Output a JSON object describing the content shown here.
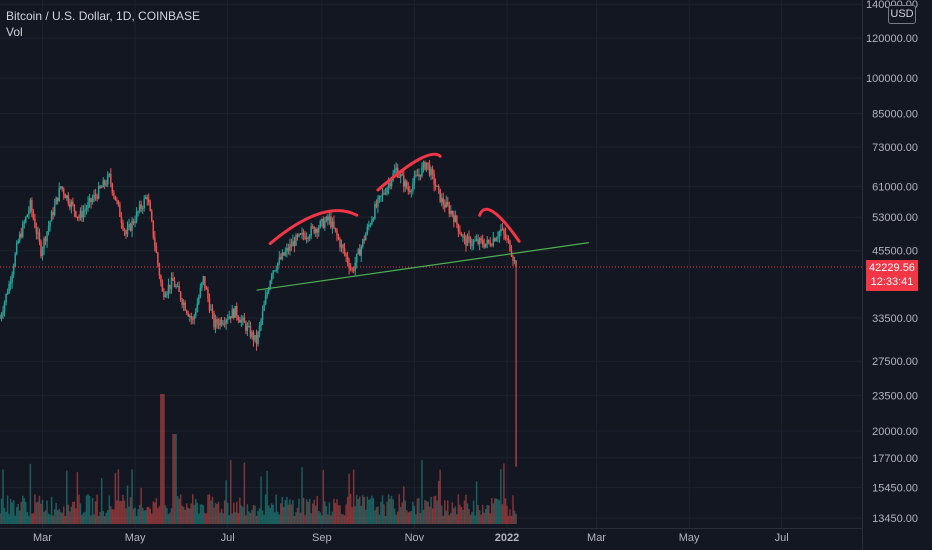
{
  "header": {
    "title": "Bitcoin / U.S. Dollar, 1D, COINBASE",
    "indicator": "Vol"
  },
  "currency_label": "USD",
  "last_price": {
    "value": "42229.56",
    "countdown": "12:33:41"
  },
  "colors": {
    "background": "#131722",
    "up": "#26a69a",
    "down": "#ef5350",
    "grid": "#1e222d",
    "trendline": "#4caf50",
    "arc": "#f23645",
    "price_line": "#f23645",
    "axis_text": "#b2b5be"
  },
  "chart_data": {
    "type": "candlestick",
    "title": "Bitcoin / U.S. Dollar, 1D, COINBASE",
    "y_scale": "log",
    "ylim": [
      13000,
      140000
    ],
    "y_ticks": [
      "140000.00",
      "120000.00",
      "100000.00",
      "85000.00",
      "73000.00",
      "61000.00",
      "53000.00",
      "45500.00",
      "33500.00",
      "27500.00",
      "23500.00",
      "20000.00",
      "17700.00",
      "15450.00",
      "13450.00"
    ],
    "x_ticks": [
      "Mar",
      "May",
      "Jul",
      "Sep",
      "Nov",
      "2022",
      "Mar",
      "May",
      "Jul"
    ],
    "x_range": [
      "2021-02-01",
      "2022-08-15"
    ],
    "price_path": [
      [
        "2021-02-01",
        33500
      ],
      [
        "2021-02-07",
        39000
      ],
      [
        "2021-02-13",
        47500
      ],
      [
        "2021-02-21",
        56000
      ],
      [
        "2021-02-28",
        45500
      ],
      [
        "2021-03-13",
        61000
      ],
      [
        "2021-03-25",
        53000
      ],
      [
        "2021-04-14",
        63500
      ],
      [
        "2021-04-25",
        49000
      ],
      [
        "2021-05-09",
        58500
      ],
      [
        "2021-05-19",
        37500
      ],
      [
        "2021-05-26",
        39500
      ],
      [
        "2021-06-08",
        33000
      ],
      [
        "2021-06-15",
        40000
      ],
      [
        "2021-06-22",
        32500
      ],
      [
        "2021-07-06",
        34500
      ],
      [
        "2021-07-20",
        30000
      ],
      [
        "2021-07-30",
        41500
      ],
      [
        "2021-08-14",
        47500
      ],
      [
        "2021-09-06",
        52500
      ],
      [
        "2021-09-21",
        41500
      ],
      [
        "2021-10-06",
        55000
      ],
      [
        "2021-10-20",
        66000
      ],
      [
        "2021-10-28",
        60000
      ],
      [
        "2021-11-09",
        68000
      ],
      [
        "2021-11-19",
        57000
      ],
      [
        "2021-11-26",
        54000
      ],
      [
        "2021-12-04",
        47500
      ],
      [
        "2021-12-20",
        47000
      ],
      [
        "2021-12-28",
        50000
      ],
      [
        "2022-01-03",
        46500
      ],
      [
        "2022-01-07",
        42229.56
      ]
    ],
    "last_bar": {
      "date": "2022-01-07",
      "open": 43500,
      "high": 43600,
      "low": 17000,
      "close": 42229.56
    },
    "annotations": {
      "neckline": {
        "from": [
          "2021-07-20",
          38000
        ],
        "to": [
          "2022-02-24",
          47200
        ]
      },
      "arcs": [
        {
          "from": [
            "2021-07-29",
            47000
          ],
          "peak": [
            "2021-08-30",
            53800
          ],
          "to": [
            "2021-09-24",
            53500
          ]
        },
        {
          "from": [
            "2021-10-08",
            60000
          ],
          "peak": [
            "2021-11-04",
            69000
          ],
          "to": [
            "2021-11-18",
            70000
          ]
        },
        {
          "from": [
            "2021-12-14",
            53500
          ],
          "peak": [
            "2021-12-23",
            54300
          ],
          "to": [
            "2022-01-09",
            47500
          ]
        }
      ]
    },
    "volume": {
      "series_name": "Vol",
      "max_spike": [
        "2021-05-19",
        "high"
      ]
    },
    "grid": true,
    "legend_position": "top-left"
  }
}
